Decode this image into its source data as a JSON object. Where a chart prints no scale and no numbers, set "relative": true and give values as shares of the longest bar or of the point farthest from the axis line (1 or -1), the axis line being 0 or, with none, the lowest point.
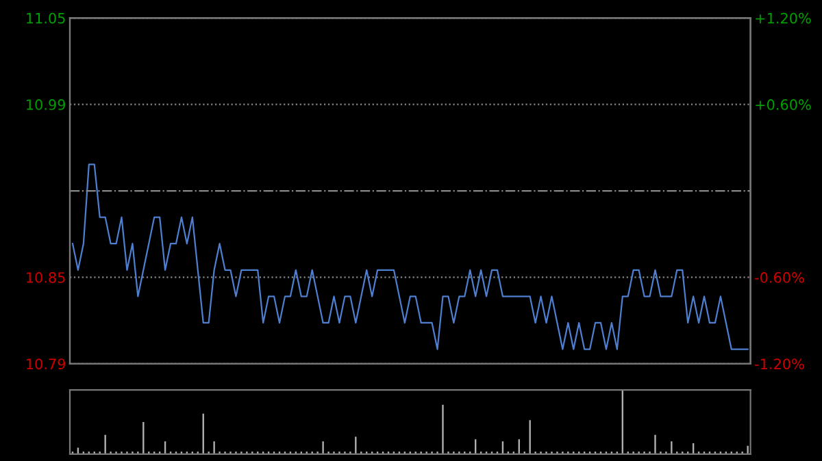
{
  "chart_data": [
    {
      "type": "line",
      "categories": [
        null,
        null,
        null,
        null,
        null,
        null,
        null,
        null,
        null,
        null,
        null,
        null,
        null,
        null,
        null,
        null,
        null,
        null,
        null,
        null,
        null,
        null,
        null,
        null,
        null,
        null,
        null,
        null,
        null,
        null,
        null,
        null,
        null,
        null,
        null,
        null,
        null,
        null,
        null,
        null,
        null,
        null,
        null,
        null,
        null,
        null,
        null,
        null,
        null,
        null,
        null,
        null,
        null,
        null,
        null,
        null,
        null,
        null,
        null,
        null,
        null,
        null,
        null,
        null,
        null,
        null,
        null,
        null,
        null,
        null,
        null,
        null,
        null,
        null,
        null,
        null,
        null,
        null,
        null,
        null,
        null,
        null,
        null,
        null,
        null,
        null,
        null,
        null,
        null,
        null,
        null,
        null,
        null,
        null,
        null,
        null,
        null,
        null,
        null,
        null,
        null,
        null,
        null,
        null,
        null,
        null,
        null,
        null,
        null,
        null,
        null,
        null,
        null,
        null,
        null,
        null,
        null,
        null,
        null,
        null,
        null,
        null,
        null,
        null,
        null
      ],
      "series": [
        {
          "color": "#4f7fd0",
          "values": [
            10.88,
            10.86,
            10.88,
            10.94,
            10.94,
            10.9,
            10.9,
            10.88,
            10.88,
            10.9,
            10.86,
            10.88,
            10.84,
            10.86,
            10.88,
            10.9,
            10.9,
            10.86,
            10.88,
            10.88,
            10.9,
            10.88,
            10.9,
            10.86,
            10.82,
            10.82,
            10.86,
            10.88,
            10.86,
            10.86,
            10.84,
            10.86,
            10.86,
            10.86,
            10.86,
            10.82,
            10.84,
            10.84,
            10.82,
            10.84,
            10.84,
            10.86,
            10.84,
            10.84,
            10.86,
            10.84,
            10.82,
            10.82,
            10.84,
            10.82,
            10.84,
            10.84,
            10.82,
            10.84,
            10.86,
            10.84,
            10.86,
            10.86,
            10.86,
            10.86,
            10.84,
            10.82,
            10.84,
            10.84,
            10.82,
            10.82,
            10.82,
            10.8,
            10.84,
            10.84,
            10.82,
            10.84,
            10.84,
            10.86,
            10.84,
            10.86,
            10.84,
            10.86,
            10.86,
            10.84,
            10.84,
            10.84,
            10.84,
            10.84,
            10.84,
            10.82,
            10.84,
            10.82,
            10.84,
            10.82,
            10.8,
            10.82,
            10.8,
            10.82,
            10.8,
            10.8,
            10.82,
            10.82,
            10.8,
            10.82,
            10.8,
            10.84,
            10.84,
            10.86,
            10.86,
            10.84,
            10.84,
            10.86,
            10.84,
            10.84,
            10.84,
            10.86,
            10.86,
            10.82,
            10.84,
            10.82,
            10.84,
            10.82,
            10.82,
            10.84,
            10.82,
            10.8,
            10.8,
            10.8,
            10.8
          ]
        }
      ],
      "ylim": [
        10.789,
        11.051
      ],
      "yticks": [
        {
          "value": 10.789,
          "label": "10.79"
        },
        {
          "value": 10.8545,
          "label": "10.85"
        },
        {
          "value": 10.9855,
          "label": "10.99"
        },
        {
          "value": 11.051,
          "label": "11.05"
        }
      ],
      "y2lim": [
        -1.2,
        1.2
      ],
      "y2ticks": [
        {
          "value": -1.2,
          "label": "-1.20%"
        },
        {
          "value": -0.6,
          "label": "-0.60%"
        },
        {
          "value": 0.6,
          "label": "+0.60%"
        },
        {
          "value": 1.2,
          "label": "+1.20%"
        }
      ],
      "ref_lines": [
        {
          "axis": "y",
          "value": 10.92,
          "line_style": "dashdot"
        }
      ],
      "grid": "y"
    },
    {
      "type": "bar",
      "relative": true,
      "color": "#b0b0b0",
      "categories": [
        null,
        null,
        null,
        null,
        null,
        null,
        null,
        null,
        null,
        null,
        null,
        null,
        null,
        null,
        null,
        null,
        null,
        null,
        null,
        null,
        null,
        null,
        null,
        null,
        null,
        null,
        null,
        null,
        null,
        null,
        null,
        null,
        null,
        null,
        null,
        null,
        null,
        null,
        null,
        null,
        null,
        null,
        null,
        null,
        null,
        null,
        null,
        null,
        null,
        null,
        null,
        null,
        null,
        null,
        null,
        null,
        null,
        null,
        null,
        null,
        null,
        null,
        null,
        null,
        null,
        null,
        null,
        null,
        null,
        null,
        null,
        null,
        null,
        null,
        null,
        null,
        null,
        null,
        null,
        null,
        null,
        null,
        null,
        null,
        null,
        null,
        null,
        null,
        null,
        null,
        null,
        null,
        null,
        null,
        null,
        null,
        null,
        null,
        null,
        null,
        null,
        null,
        null,
        null,
        null,
        null,
        null,
        null,
        null,
        null,
        null,
        null,
        null,
        null,
        null,
        null,
        null,
        null,
        null,
        null,
        null,
        null,
        null,
        null,
        null
      ],
      "values": [
        0.04,
        0.1,
        0.04,
        0.04,
        0.04,
        0.04,
        0.3,
        0.04,
        0.04,
        0.04,
        0.04,
        0.04,
        0.04,
        0.5,
        0.04,
        0.04,
        0.04,
        0.2,
        0.04,
        0.04,
        0.04,
        0.04,
        0.04,
        0.04,
        0.63,
        0.04,
        0.2,
        0.04,
        0.04,
        0.04,
        0.04,
        0.04,
        0.04,
        0.04,
        0.04,
        0.04,
        0.04,
        0.04,
        0.04,
        0.04,
        0.04,
        0.04,
        0.04,
        0.04,
        0.04,
        0.04,
        0.2,
        0.04,
        0.04,
        0.04,
        0.04,
        0.04,
        0.27,
        0.04,
        0.04,
        0.04,
        0.04,
        0.04,
        0.04,
        0.04,
        0.04,
        0.04,
        0.04,
        0.04,
        0.04,
        0.04,
        0.04,
        0.04,
        0.77,
        0.04,
        0.04,
        0.04,
        0.04,
        0.04,
        0.23,
        0.04,
        0.04,
        0.04,
        0.04,
        0.2,
        0.04,
        0.04,
        0.23,
        0.04,
        0.53,
        0.04,
        0.04,
        0.04,
        0.04,
        0.04,
        0.04,
        0.04,
        0.04,
        0.04,
        0.04,
        0.04,
        0.04,
        0.04,
        0.04,
        0.04,
        0.04,
        1,
        0.04,
        0.04,
        0.04,
        0.04,
        0.04,
        0.3,
        0.04,
        0.04,
        0.2,
        0.04,
        0.04,
        0.04,
        0.17,
        0.04,
        0.04,
        0.04,
        0.04,
        0.04,
        0.04,
        0.04,
        0.04,
        0.04,
        0.13
      ]
    }
  ]
}
